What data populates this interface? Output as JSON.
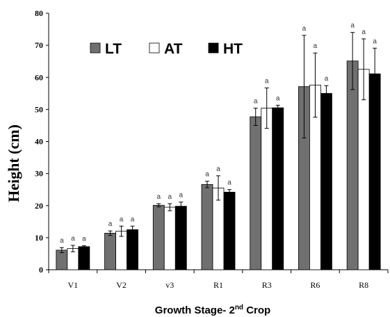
{
  "chart_data": {
    "type": "bar",
    "title": "",
    "xlabel": "Growth  Stage- 2",
    "xlabel_sup": "nd",
    "xlabel_suffix": " Crop",
    "ylabel": "Height (cm)",
    "ylim": [
      0,
      80
    ],
    "yticks": [
      0,
      10,
      20,
      30,
      40,
      50,
      60,
      70,
      80
    ],
    "grid": false,
    "legend_position": "top-left",
    "categories": [
      "V1",
      "V2",
      "v3",
      "R1",
      "R3",
      "R6",
      "R8"
    ],
    "series": [
      {
        "name": "LT",
        "color": "#707070",
        "values": [
          6.1,
          11.4,
          20.1,
          26.6,
          47.7,
          57.1,
          65.1
        ],
        "errors": [
          0.8,
          0.7,
          0.5,
          1.0,
          2.7,
          16.0,
          8.9
        ],
        "labels": [
          "a",
          "a",
          "a",
          "a",
          "a",
          "a",
          "a"
        ]
      },
      {
        "name": "AT",
        "color": "#ffffff",
        "values": [
          6.6,
          12.0,
          19.5,
          25.5,
          50.4,
          57.6,
          62.5
        ],
        "errors": [
          1.0,
          1.6,
          1.1,
          3.8,
          6.3,
          10.0,
          9.5
        ],
        "labels": [
          "a",
          "a",
          "a",
          "a",
          "a",
          "a",
          "a"
        ]
      },
      {
        "name": "HT",
        "color": "#000000",
        "values": [
          7.2,
          12.5,
          19.8,
          24.2,
          50.5,
          55.0,
          61.1
        ],
        "errors": [
          0.3,
          1.1,
          1.3,
          0.8,
          0.8,
          2.4,
          8.0
        ],
        "labels": [
          "a",
          "a",
          "a",
          "a",
          "a",
          "a",
          "a"
        ]
      }
    ]
  }
}
